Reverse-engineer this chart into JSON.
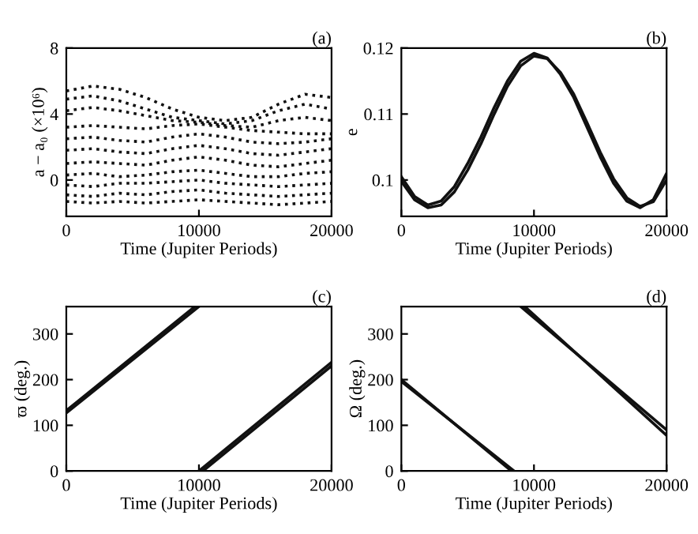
{
  "chart_data": [
    {
      "type": "line",
      "title": "(a)",
      "xlabel": "Time (Jupiter Periods)",
      "ylabel": "a − a₀ (×10⁶)",
      "line_style": "dotted",
      "marker": "none",
      "xlim": [
        0,
        20000
      ],
      "xticks": [
        0,
        10000,
        20000
      ],
      "ylim": [
        -2.2,
        8
      ],
      "yticks": [
        0,
        4,
        8
      ],
      "grid": false,
      "legend": false,
      "x": [
        0,
        2000,
        4000,
        6000,
        8000,
        10000,
        12000,
        14000,
        16000,
        18000,
        20000
      ],
      "series": [
        {
          "color": "#111111",
          "values": [
            5.4,
            5.7,
            5.5,
            5.0,
            4.3,
            3.8,
            3.6,
            3.8,
            4.6,
            5.2,
            5.0
          ]
        },
        {
          "color": "#111111",
          "values": [
            4.9,
            5.1,
            4.8,
            4.3,
            3.8,
            3.6,
            3.4,
            3.6,
            4.2,
            4.6,
            4.3
          ]
        },
        {
          "color": "#111111",
          "values": [
            4.2,
            4.4,
            4.2,
            3.9,
            3.6,
            3.5,
            3.3,
            3.2,
            3.6,
            3.8,
            3.6
          ]
        },
        {
          "color": "#111111",
          "values": [
            3.2,
            3.3,
            3.2,
            3.1,
            3.3,
            3.4,
            3.2,
            3.0,
            2.9,
            2.8,
            2.8
          ]
        },
        {
          "color": "#111111",
          "values": [
            2.5,
            2.6,
            2.4,
            2.3,
            2.6,
            2.8,
            2.6,
            2.3,
            2.2,
            2.3,
            2.5
          ]
        },
        {
          "color": "#111111",
          "values": [
            1.8,
            1.9,
            1.7,
            1.6,
            1.9,
            2.1,
            1.9,
            1.6,
            1.5,
            1.7,
            1.9
          ]
        },
        {
          "color": "#111111",
          "values": [
            1.0,
            1.1,
            1.0,
            0.9,
            1.2,
            1.4,
            1.2,
            0.9,
            0.8,
            1.0,
            1.2
          ]
        },
        {
          "color": "#111111",
          "values": [
            0.3,
            0.4,
            0.2,
            0.3,
            0.5,
            0.6,
            0.4,
            0.2,
            0.2,
            0.4,
            0.5
          ]
        },
        {
          "color": "#111111",
          "values": [
            -0.3,
            -0.4,
            -0.2,
            -0.2,
            -0.1,
            0.0,
            -0.2,
            -0.3,
            -0.4,
            -0.3,
            -0.2
          ]
        },
        {
          "color": "#111111",
          "values": [
            -0.9,
            -1.0,
            -0.8,
            -0.9,
            -0.7,
            -0.6,
            -0.8,
            -0.9,
            -1.0,
            -0.9,
            -0.8
          ]
        },
        {
          "color": "#111111",
          "values": [
            -1.3,
            -1.4,
            -1.3,
            -1.4,
            -1.3,
            -1.2,
            -1.3,
            -1.4,
            -1.5,
            -1.4,
            -1.3
          ]
        }
      ]
    },
    {
      "type": "line",
      "title": "(b)",
      "xlabel": "Time (Jupiter Periods)",
      "ylabel": "e",
      "line_style": "solid",
      "marker": "none",
      "xlim": [
        0,
        20000
      ],
      "xticks": [
        0,
        10000,
        20000
      ],
      "ylim": [
        0.0945,
        0.12
      ],
      "yticks": [
        0.1,
        0.11,
        0.12
      ],
      "grid": false,
      "legend": false,
      "x": [
        0,
        1000,
        2000,
        3000,
        4000,
        5000,
        6000,
        7000,
        8000,
        9000,
        10000,
        11000,
        12000,
        13000,
        14000,
        15000,
        16000,
        17000,
        18000,
        19000,
        20000
      ],
      "series": [
        {
          "color": "#111111",
          "values": [
            0.1005,
            0.0975,
            0.0962,
            0.0968,
            0.099,
            0.1025,
            0.1065,
            0.111,
            0.115,
            0.118,
            0.1192,
            0.1185,
            0.116,
            0.1125,
            0.108,
            0.1035,
            0.0995,
            0.0968,
            0.0958,
            0.097,
            0.101
          ]
        },
        {
          "color": "#111111",
          "values": [
            0.0998,
            0.097,
            0.0958,
            0.0962,
            0.0982,
            0.1015,
            0.1055,
            0.11,
            0.1142,
            0.1173,
            0.1188,
            0.1184,
            0.1163,
            0.113,
            0.1087,
            0.1042,
            0.1002,
            0.0973,
            0.096,
            0.0967,
            0.1
          ]
        }
      ]
    },
    {
      "type": "line",
      "title": "(c)",
      "xlabel": "Time (Jupiter Periods)",
      "ylabel": "ϖ (deg.)",
      "line_style": "solid",
      "marker": "none",
      "xlim": [
        0,
        20000
      ],
      "xticks": [
        0,
        10000,
        20000
      ],
      "ylim": [
        0,
        360
      ],
      "yticks": [
        0,
        100,
        200,
        300
      ],
      "grid": false,
      "legend": false,
      "series": [
        {
          "color": "#111111",
          "x": [
            0,
            9700
          ],
          "values": [
            132,
            360
          ]
        },
        {
          "color": "#111111",
          "x": [
            0,
            10000
          ],
          "values": [
            127,
            360
          ]
        },
        {
          "color": "#111111",
          "x": [
            10000,
            20000
          ],
          "values": [
            0,
            238
          ]
        },
        {
          "color": "#111111",
          "x": [
            10300,
            20000
          ],
          "values": [
            0,
            230
          ]
        }
      ]
    },
    {
      "type": "line",
      "title": "(d)",
      "xlabel": "Time (Jupiter Periods)",
      "ylabel": "Ω (deg.)",
      "line_style": "solid",
      "marker": "none",
      "xlim": [
        0,
        20000
      ],
      "xticks": [
        0,
        10000,
        20000
      ],
      "ylim": [
        0,
        360
      ],
      "yticks": [
        0,
        100,
        200,
        300
      ],
      "grid": false,
      "legend": false,
      "series": [
        {
          "color": "#111111",
          "x": [
            0,
            8300
          ],
          "values": [
            200,
            0
          ]
        },
        {
          "color": "#111111",
          "x": [
            0,
            8500
          ],
          "values": [
            196,
            0
          ]
        },
        {
          "color": "#111111",
          "x": [
            9000,
            20000
          ],
          "values": [
            360,
            90
          ]
        },
        {
          "color": "#111111",
          "x": [
            9300,
            20000
          ],
          "values": [
            360,
            78
          ]
        }
      ]
    }
  ]
}
